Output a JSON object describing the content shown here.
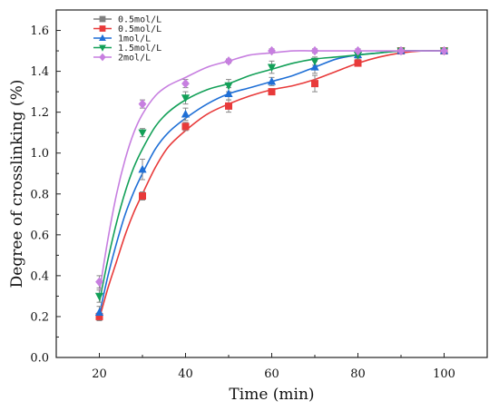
{
  "chart_data": {
    "type": "scatter",
    "xlabel": "Time (min)",
    "ylabel": "Degree of crosslinking (%)",
    "xlim": [
      10,
      110
    ],
    "ylim": [
      0.0,
      1.7
    ],
    "xticks": [
      "20",
      "40",
      "60",
      "80",
      "100"
    ],
    "yticks": [
      "0.0",
      "0.2",
      "0.4",
      "0.6",
      "0.8",
      "1.0",
      "1.2",
      "1.4",
      "1.6"
    ],
    "grid": false,
    "legend_position": "top-left",
    "series": [
      {
        "name": "0.5mol/L",
        "color": "#7f7f7f",
        "marker": "square",
        "x": [],
        "y": [],
        "fit": []
      },
      {
        "name": "0.5mol/L",
        "color": "#e83a3a",
        "marker": "square",
        "x": [
          20,
          30,
          40,
          50,
          60,
          70,
          80,
          90,
          100
        ],
        "y": [
          0.2,
          0.79,
          1.13,
          1.23,
          1.3,
          1.34,
          1.44,
          1.5,
          1.5
        ],
        "err": [
          0.02,
          0.02,
          0.02,
          0.03,
          0.01,
          0.04,
          0.01,
          0.01,
          0.01
        ],
        "fit": [
          [
            20,
            0.19
          ],
          [
            22,
            0.34
          ],
          [
            24,
            0.47
          ],
          [
            26,
            0.6
          ],
          [
            28,
            0.71
          ],
          [
            30,
            0.8
          ],
          [
            33,
            0.93
          ],
          [
            36,
            1.03
          ],
          [
            40,
            1.11
          ],
          [
            45,
            1.19
          ],
          [
            50,
            1.24
          ],
          [
            55,
            1.28
          ],
          [
            60,
            1.31
          ],
          [
            65,
            1.33
          ],
          [
            70,
            1.36
          ],
          [
            75,
            1.4
          ],
          [
            80,
            1.44
          ],
          [
            85,
            1.47
          ],
          [
            90,
            1.49
          ],
          [
            95,
            1.5
          ],
          [
            100,
            1.5
          ]
        ]
      },
      {
        "name": "1mol/L",
        "color": "#1f6fd6",
        "marker": "triangle-up",
        "x": [
          20,
          30,
          40,
          50,
          60,
          70,
          80,
          90,
          100
        ],
        "y": [
          0.22,
          0.92,
          1.19,
          1.29,
          1.35,
          1.42,
          1.48,
          1.5,
          1.5
        ],
        "err": [
          0.03,
          0.05,
          0.03,
          0.03,
          0.02,
          0.03,
          0.02,
          0.01,
          0.01
        ],
        "fit": [
          [
            20,
            0.21
          ],
          [
            22,
            0.4
          ],
          [
            24,
            0.56
          ],
          [
            26,
            0.7
          ],
          [
            28,
            0.81
          ],
          [
            30,
            0.9
          ],
          [
            33,
            1.02
          ],
          [
            36,
            1.1
          ],
          [
            40,
            1.17
          ],
          [
            45,
            1.24
          ],
          [
            50,
            1.29
          ],
          [
            55,
            1.32
          ],
          [
            60,
            1.35
          ],
          [
            65,
            1.38
          ],
          [
            70,
            1.42
          ],
          [
            75,
            1.46
          ],
          [
            80,
            1.48
          ],
          [
            85,
            1.49
          ],
          [
            90,
            1.5
          ],
          [
            95,
            1.5
          ],
          [
            100,
            1.5
          ]
        ]
      },
      {
        "name": "1.5mol/L",
        "color": "#13a058",
        "marker": "triangle-down",
        "x": [
          20,
          30,
          40,
          50,
          60,
          70,
          80,
          90,
          100
        ],
        "y": [
          0.3,
          1.1,
          1.27,
          1.33,
          1.42,
          1.45,
          1.48,
          1.5,
          1.5
        ],
        "err": [
          0.03,
          0.02,
          0.03,
          0.03,
          0.03,
          0.02,
          0.02,
          0.01,
          0.01
        ],
        "fit": [
          [
            20,
            0.27
          ],
          [
            22,
            0.48
          ],
          [
            24,
            0.66
          ],
          [
            26,
            0.81
          ],
          [
            28,
            0.93
          ],
          [
            30,
            1.02
          ],
          [
            33,
            1.13
          ],
          [
            36,
            1.2
          ],
          [
            40,
            1.26
          ],
          [
            45,
            1.31
          ],
          [
            50,
            1.34
          ],
          [
            55,
            1.38
          ],
          [
            60,
            1.41
          ],
          [
            65,
            1.44
          ],
          [
            70,
            1.46
          ],
          [
            75,
            1.47
          ],
          [
            80,
            1.48
          ],
          [
            85,
            1.49
          ],
          [
            90,
            1.5
          ],
          [
            95,
            1.5
          ],
          [
            100,
            1.5
          ]
        ]
      },
      {
        "name": "2mol/L",
        "color": "#c77fe0",
        "marker": "diamond",
        "x": [
          20,
          30,
          40,
          50,
          60,
          70,
          80,
          90,
          100
        ],
        "y": [
          0.37,
          1.24,
          1.34,
          1.45,
          1.5,
          1.5,
          1.5,
          1.5,
          1.5
        ],
        "err": [
          0.03,
          0.02,
          0.02,
          0.01,
          0.01,
          0.01,
          0.01,
          0.01,
          0.01
        ],
        "fit": [
          [
            20,
            0.32
          ],
          [
            22,
            0.58
          ],
          [
            24,
            0.8
          ],
          [
            26,
            0.97
          ],
          [
            28,
            1.1
          ],
          [
            30,
            1.19
          ],
          [
            33,
            1.28
          ],
          [
            36,
            1.33
          ],
          [
            40,
            1.37
          ],
          [
            45,
            1.42
          ],
          [
            50,
            1.45
          ],
          [
            55,
            1.48
          ],
          [
            60,
            1.49
          ],
          [
            65,
            1.5
          ],
          [
            70,
            1.5
          ],
          [
            80,
            1.5
          ],
          [
            90,
            1.5
          ],
          [
            100,
            1.5
          ]
        ]
      }
    ]
  }
}
